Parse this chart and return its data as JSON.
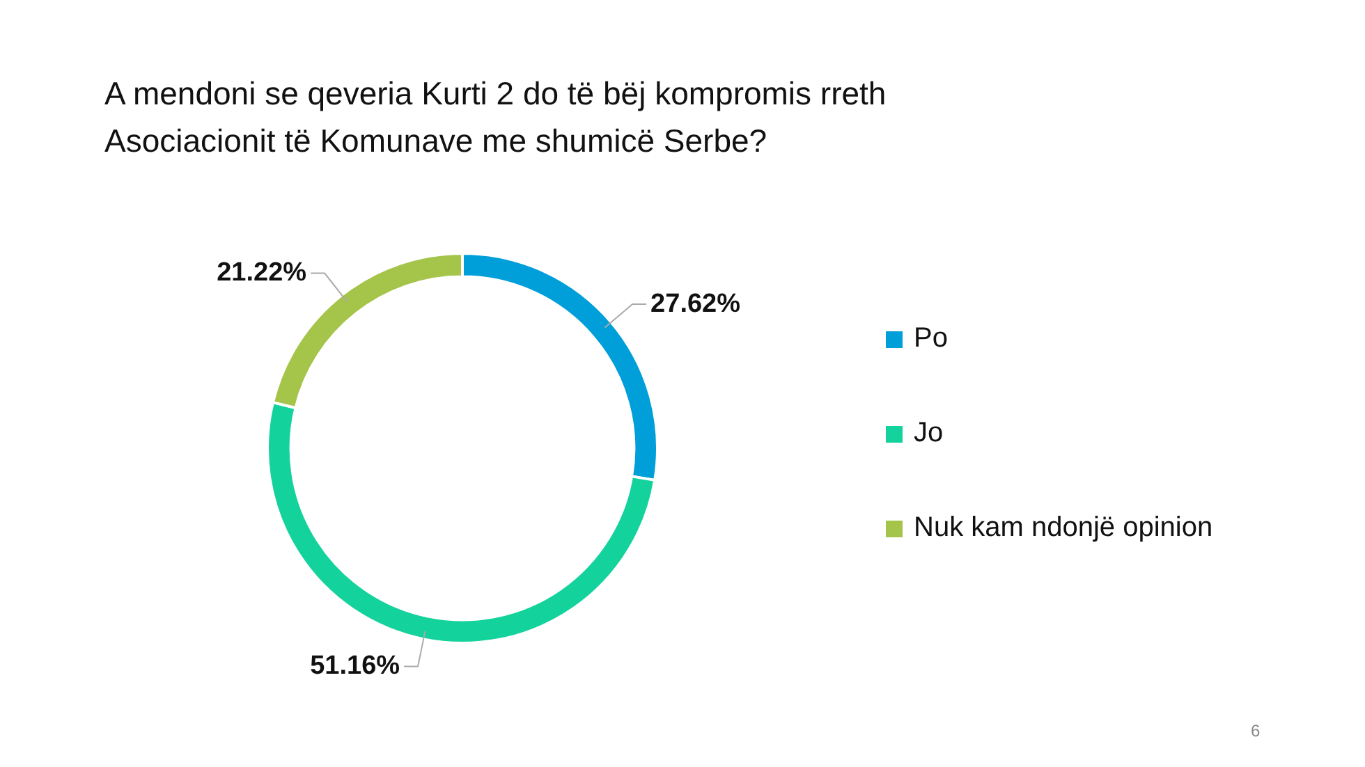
{
  "chart_data": {
    "type": "donut",
    "title": "A mendoni se qeveria Kurti 2 do të bëj kompromis rreth Asociacionit të Komunave me shumicë Serbe?",
    "categories": [
      "Po",
      "Jo",
      "Nuk kam ndonjë opinion"
    ],
    "values": [
      27.62,
      51.16,
      21.22
    ],
    "colors": [
      "#009fd9",
      "#13d29c",
      "#a5c44a"
    ],
    "value_labels": [
      "27.62%",
      "51.16%",
      "21.22%"
    ],
    "legend": "right",
    "annotations": [
      "6"
    ]
  }
}
